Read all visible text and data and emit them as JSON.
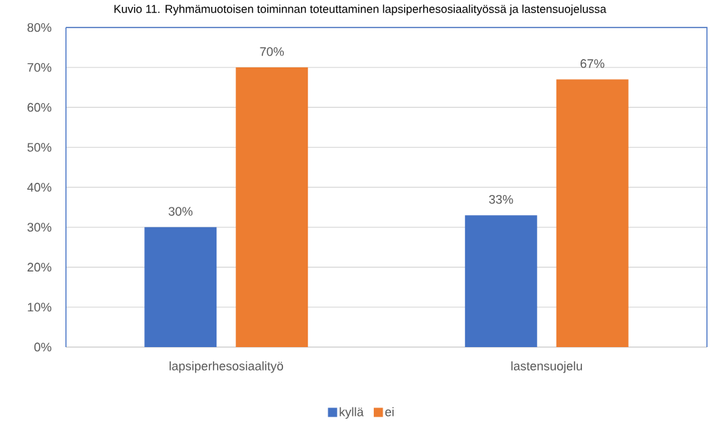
{
  "chart_data": {
    "type": "bar",
    "title": "Kuvio 11. Ryhmämuotoisen toiminnan toteuttaminen lapsiperhesosiaalityössä ja lastensuojelussa",
    "categories": [
      "lapsiperhesosiaalityö",
      "lastensuojelu"
    ],
    "series": [
      {
        "name": "kyllä",
        "color": "#4472c4",
        "values": [
          30,
          33
        ],
        "value_labels": [
          "30%",
          "33%"
        ]
      },
      {
        "name": "ei",
        "color": "#ed7d31",
        "values": [
          70,
          67
        ],
        "value_labels": [
          "70%",
          "67%"
        ]
      }
    ],
    "ylim": [
      0,
      80
    ],
    "yticks": [
      {
        "value": 0,
        "label": "0%"
      },
      {
        "value": 10,
        "label": "10%"
      },
      {
        "value": 20,
        "label": "20%"
      },
      {
        "value": 30,
        "label": "30%"
      },
      {
        "value": 40,
        "label": "40%"
      },
      {
        "value": 50,
        "label": "50%"
      },
      {
        "value": 60,
        "label": "60%"
      },
      {
        "value": 70,
        "label": "70%"
      },
      {
        "value": 80,
        "label": "80%"
      }
    ],
    "grid": "y",
    "legend": "bottom"
  }
}
